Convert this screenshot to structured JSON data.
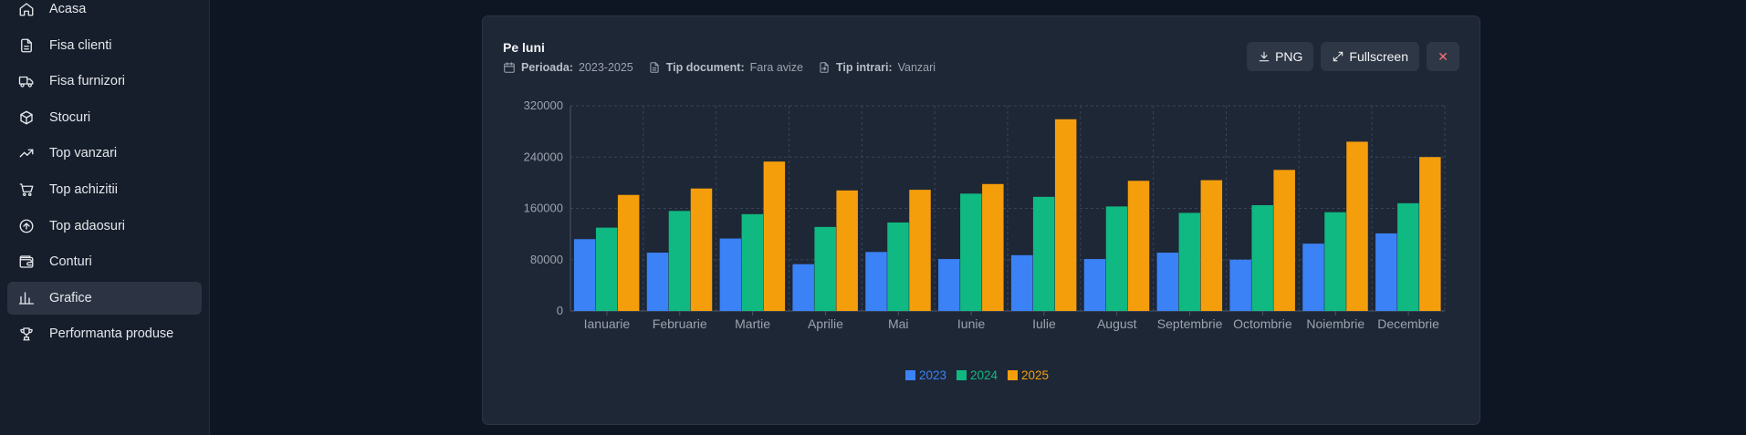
{
  "sidebar": {
    "items": [
      {
        "label": "Acasa",
        "icon": "home-icon",
        "name": "sidebar-item-acasa"
      },
      {
        "label": "Fisa clienti",
        "icon": "file-text-icon",
        "name": "sidebar-item-fisa-clienti"
      },
      {
        "label": "Fisa furnizori",
        "icon": "truck-icon",
        "name": "sidebar-item-fisa-furnizori"
      },
      {
        "label": "Stocuri",
        "icon": "box-icon",
        "name": "sidebar-item-stocuri"
      },
      {
        "label": "Top vanzari",
        "icon": "trending-up-icon",
        "name": "sidebar-item-top-vanzari"
      },
      {
        "label": "Top achizitii",
        "icon": "cart-icon",
        "name": "sidebar-item-top-achizitii"
      },
      {
        "label": "Top adaosuri",
        "icon": "arrow-up-circle-icon",
        "name": "sidebar-item-top-adaosuri"
      },
      {
        "label": "Conturi",
        "icon": "wallet-icon",
        "name": "sidebar-item-conturi"
      },
      {
        "label": "Grafice",
        "icon": "bar-chart-icon",
        "name": "sidebar-item-grafice",
        "active": true
      },
      {
        "label": "Performanta produse",
        "icon": "trophy-icon",
        "name": "sidebar-item-performanta-produse"
      }
    ]
  },
  "card": {
    "title": "Pe luni",
    "meta": {
      "period_label": "Perioada:",
      "period_value": "2023-2025",
      "doc_label": "Tip document:",
      "doc_value": "Fara avize",
      "entry_label": "Tip intrari:",
      "entry_value": "Vanzari"
    },
    "toolbar": {
      "png_label": "PNG",
      "fullscreen_label": "Fullscreen",
      "close_label": "✕"
    }
  },
  "chart_data": {
    "type": "bar",
    "title": "",
    "xlabel": "",
    "ylabel": "",
    "categories": [
      "Ianuarie",
      "Februarie",
      "Martie",
      "Aprilie",
      "Mai",
      "Iunie",
      "Iulie",
      "August",
      "Septembrie",
      "Octombrie",
      "Noiembrie",
      "Decembrie"
    ],
    "ylim": [
      0,
      320000
    ],
    "yticks": [
      0,
      80000,
      160000,
      240000,
      320000
    ],
    "grid": true,
    "legend_position": "bottom-center",
    "series": [
      {
        "name": "2023",
        "color": "#3b82f6",
        "values": [
          112000,
          91000,
          113000,
          73000,
          92000,
          81000,
          87000,
          81000,
          91000,
          80000,
          105000,
          121000
        ]
      },
      {
        "name": "2024",
        "color": "#10b981",
        "values": [
          130000,
          156000,
          151000,
          131000,
          138000,
          183000,
          178000,
          163000,
          153000,
          165000,
          154000,
          168000
        ]
      },
      {
        "name": "2025",
        "color": "#f59e0b",
        "values": [
          181000,
          191000,
          233000,
          188000,
          189000,
          198000,
          299000,
          203000,
          204000,
          220000,
          264000,
          240000
        ]
      }
    ]
  }
}
